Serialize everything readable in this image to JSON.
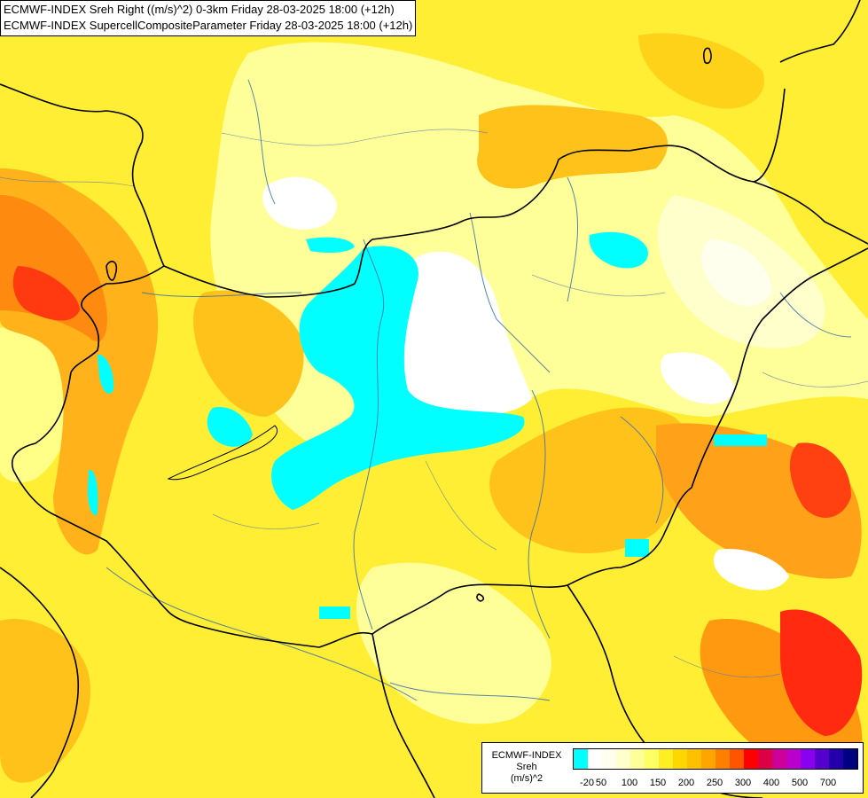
{
  "header": {
    "line1": "ECMWF-INDEX Sreh Right ((m/s)^2) 0-3km Friday 28-03-2025 18:00 (+12h)",
    "line2": "ECMWF-INDEX SupercellCompositeParameter Friday 28-03-2025 18:00 (+12h)"
  },
  "legend": {
    "source": "ECMWF-INDEX",
    "variable": "Sreh",
    "unit": "(m/s)^2",
    "swatch_colors": [
      "#00ffff",
      "#ffffff",
      "#ffffee",
      "#ffffcc",
      "#ffff99",
      "#ffff66",
      "#ffee22",
      "#ffd700",
      "#ffc000",
      "#ffa500",
      "#ff8000",
      "#ff5500",
      "#ff0000",
      "#dd0044",
      "#cc0099",
      "#bb00cc",
      "#8800ee",
      "#5500cc",
      "#2200aa",
      "#000080"
    ],
    "ticks": [
      {
        "label": "-20",
        "index": 0
      },
      {
        "label": "50",
        "index": 1
      },
      {
        "label": "100",
        "index": 3
      },
      {
        "label": "150",
        "index": 5
      },
      {
        "label": "200",
        "index": 7
      },
      {
        "label": "250",
        "index": 9
      },
      {
        "label": "300",
        "index": 11
      },
      {
        "label": "400",
        "index": 13
      },
      {
        "label": "500",
        "index": 15
      },
      {
        "label": "700",
        "index": 17
      }
    ]
  },
  "map": {
    "field_colors": {
      "light": "#ffffbb",
      "pale": "#ffff88",
      "yellow": "#ffee33",
      "gold": "#ffd21a",
      "orange": "#ffa21a",
      "dark_orange": "#ff7a10",
      "red": "#ff2010",
      "white": "#ffffff",
      "cyan": "#00ffff"
    },
    "border_color": "#000000",
    "river_color": "#3a6fa8"
  }
}
